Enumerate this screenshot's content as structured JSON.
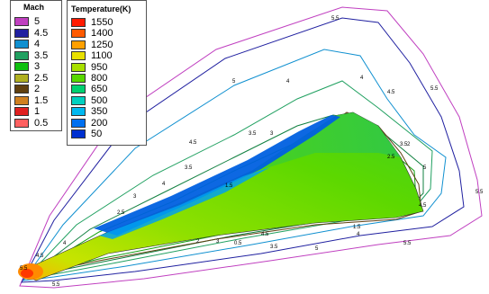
{
  "mach_legend": {
    "title": "Mach",
    "levels": [
      {
        "label": "5",
        "color": "#c040c0"
      },
      {
        "label": "4.5",
        "color": "#2020a0"
      },
      {
        "label": "4",
        "color": "#1090d0"
      },
      {
        "label": "3.5",
        "color": "#20a060"
      },
      {
        "label": "3",
        "color": "#10c010"
      },
      {
        "label": "2.5",
        "color": "#b0b020"
      },
      {
        "label": "2",
        "color": "#604010"
      },
      {
        "label": "1.5",
        "color": "#d08020"
      },
      {
        "label": "1",
        "color": "#e02020"
      },
      {
        "label": "0.5",
        "color": "#ff6060"
      }
    ]
  },
  "temperature_legend": {
    "title": "Temperature(K)",
    "levels": [
      {
        "label": "1550",
        "color": "#ff1a00"
      },
      {
        "label": "1400",
        "color": "#ff5a00"
      },
      {
        "label": "1250",
        "color": "#ffa000"
      },
      {
        "label": "1100",
        "color": "#e8e000"
      },
      {
        "label": "950",
        "color": "#a8e000"
      },
      {
        "label": "800",
        "color": "#58d800"
      },
      {
        "label": "650",
        "color": "#00d070"
      },
      {
        "label": "500",
        "color": "#00d0c0"
      },
      {
        "label": "350",
        "color": "#00b8f0"
      },
      {
        "label": "200",
        "color": "#0070f0"
      },
      {
        "label": "50",
        "color": "#0030d0"
      }
    ]
  },
  "contour_labels": [
    "5.5",
    "5",
    "4.5",
    "4",
    "3.5",
    "3",
    "2.5",
    "2",
    "1.5",
    "0.5"
  ]
}
